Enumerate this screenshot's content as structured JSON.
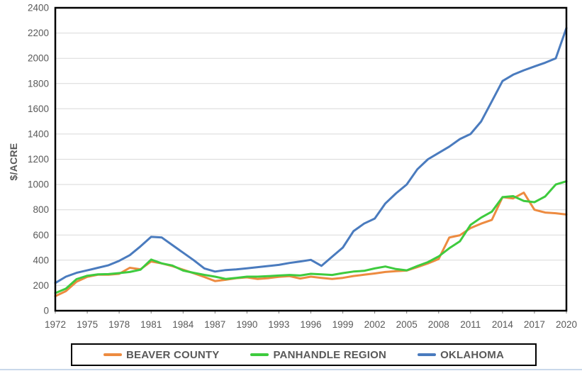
{
  "chart_data": {
    "type": "line",
    "title": "",
    "xlabel": "",
    "ylabel": "$/ACRE",
    "ylim": [
      0,
      2400
    ],
    "y_tick_step": 200,
    "y_tick_labels": [
      "0",
      "200",
      "400",
      "600",
      "800",
      "1000",
      "1200",
      "1400",
      "1600",
      "1800",
      "2000",
      "2200",
      "2400"
    ],
    "x_range": [
      1972,
      2020
    ],
    "x_tick_labels": [
      "1972",
      "1975",
      "1978",
      "1981",
      "1984",
      "1987",
      "1990",
      "1993",
      "1996",
      "1999",
      "2002",
      "2005",
      "2008",
      "2011",
      "2014",
      "2017",
      "2020"
    ],
    "grid": true,
    "legend_position": "bottom",
    "x": [
      1972,
      1973,
      1974,
      1975,
      1976,
      1977,
      1978,
      1979,
      1980,
      1981,
      1982,
      1983,
      1984,
      1985,
      1986,
      1987,
      1988,
      1989,
      1990,
      1991,
      1992,
      1993,
      1994,
      1995,
      1996,
      1997,
      1998,
      1999,
      2000,
      2001,
      2002,
      2003,
      2004,
      2005,
      2006,
      2007,
      2008,
      2009,
      2010,
      2011,
      2012,
      2013,
      2014,
      2015,
      2016,
      2017,
      2018,
      2019,
      2020
    ],
    "series": [
      {
        "name": "BEAVER COUNTY",
        "color": "#ED8B40",
        "values": [
          115,
          155,
          230,
          268,
          285,
          285,
          292,
          340,
          328,
          390,
          375,
          353,
          325,
          297,
          267,
          235,
          245,
          258,
          264,
          251,
          258,
          268,
          274,
          255,
          270,
          260,
          251,
          260,
          275,
          285,
          295,
          307,
          313,
          318,
          345,
          375,
          410,
          580,
          598,
          655,
          690,
          720,
          900,
          890,
          935,
          800,
          778,
          772,
          762
        ]
      },
      {
        "name": "PANHANDLE REGION",
        "color": "#3ECB3E",
        "values": [
          140,
          175,
          250,
          277,
          288,
          290,
          298,
          307,
          325,
          405,
          375,
          358,
          318,
          300,
          284,
          270,
          252,
          260,
          270,
          270,
          274,
          279,
          283,
          279,
          292,
          288,
          283,
          298,
          310,
          316,
          335,
          350,
          330,
          320,
          354,
          385,
          430,
          495,
          550,
          680,
          738,
          785,
          900,
          908,
          870,
          860,
          905,
          1000,
          1025
        ]
      },
      {
        "name": "OKLAHOMA",
        "color": "#4A7BBE",
        "values": [
          220,
          270,
          300,
          320,
          340,
          360,
          395,
          440,
          510,
          585,
          580,
          520,
          460,
          400,
          335,
          310,
          322,
          327,
          336,
          345,
          354,
          363,
          378,
          390,
          403,
          355,
          428,
          500,
          630,
          690,
          730,
          850,
          930,
          1000,
          1120,
          1200,
          1250,
          1300,
          1360,
          1400,
          1500,
          1660,
          1820,
          1870,
          1905,
          1935,
          1965,
          2000,
          2240
        ]
      }
    ],
    "colors": {
      "grid": "#D9D9D9",
      "axis_text": "#595959",
      "plot_border": "#000000",
      "tick": "#7F7F7F"
    }
  }
}
